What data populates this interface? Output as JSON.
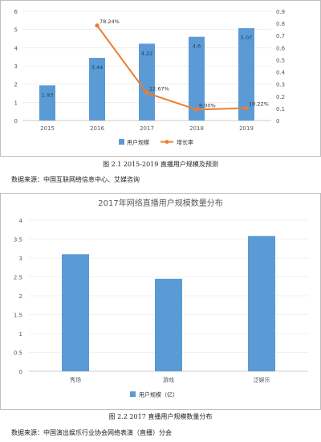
{
  "chart_data": [
    {
      "type": "bar+line",
      "categories": [
        "2015",
        "2016",
        "2017",
        "2018",
        "2019"
      ],
      "series": [
        {
          "name": "用户规模",
          "type": "bar",
          "axis": "left",
          "values": [
            1.93,
            3.44,
            4.22,
            4.6,
            5.07
          ],
          "labels": [
            "1.93",
            "3.44",
            "4.22",
            "4.6",
            "5.07"
          ]
        },
        {
          "name": "增长率",
          "type": "line",
          "axis": "right",
          "values": [
            null,
            0.7824,
            0.2267,
            0.09,
            0.1022
          ],
          "labels": [
            "",
            "78.24%",
            "22.67%",
            "9.00%",
            "10.22%"
          ]
        }
      ],
      "ylim_left": [
        0,
        6
      ],
      "yticks_left": [
        "0",
        "1",
        "2",
        "3",
        "4",
        "5",
        "6"
      ],
      "ylim_right": [
        0,
        0.9
      ],
      "yticks_right": [
        "0",
        "0.1",
        "0.2",
        "0.3",
        "0.4",
        "0.5",
        "0.6",
        "0.7",
        "0.8",
        "0.9"
      ],
      "legend": "bottom",
      "colors": {
        "bar": "#5b9bd5",
        "line": "#ed7d31"
      }
    },
    {
      "type": "bar",
      "title": "2017年网络直播用户规模数量分布",
      "categories": [
        "秀场",
        "游戏",
        "泛娱乐"
      ],
      "values": [
        3.1,
        2.45,
        3.58
      ],
      "ylim": [
        0,
        4
      ],
      "yticks": [
        "0",
        "0.5",
        "1",
        "1.5",
        "2",
        "2.5",
        "3",
        "3.5",
        "4"
      ],
      "series_name": "用户规模（亿）",
      "legend": "bottom",
      "colors": {
        "bar": "#5b9bd5"
      }
    }
  ],
  "captions": {
    "fig1": "图 2.1    2015-2019 直播用户规模及预测",
    "fig1_source": "数据来源：中国互联网络信息中心、艾媒咨询",
    "fig2": "图 2.2    2017 直播用户规模数量分布",
    "fig2_source": "数据来源：中国演出娱乐行业协会网络表演（直播）分会"
  }
}
